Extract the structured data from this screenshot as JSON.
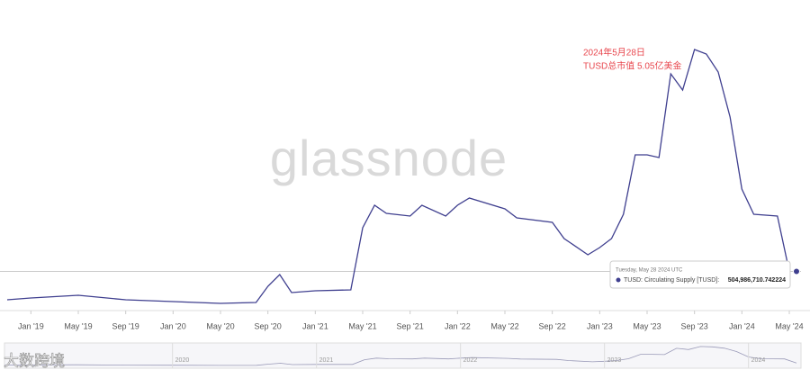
{
  "chart_data": {
    "type": "line",
    "watermark": "glassnode",
    "annotation": [
      "2024年5月28日",
      "TUSD总市值 5.05亿美金"
    ],
    "x": [
      "2018-11",
      "2019-01",
      "2019-05",
      "2019-09",
      "2020-01",
      "2020-05",
      "2020-08",
      "2020-09",
      "2020-10",
      "2020-11",
      "2021-01",
      "2021-04",
      "2021-05",
      "2021-06",
      "2021-07",
      "2021-09",
      "2021-10",
      "2021-12",
      "2022-01",
      "2022-02",
      "2022-05",
      "2022-06",
      "2022-09",
      "2022-10",
      "2022-12",
      "2023-01",
      "2023-02",
      "2023-03",
      "2023-04",
      "2023-05",
      "2023-06",
      "2023-07",
      "2023-08",
      "2023-09",
      "2023-10",
      "2023-11",
      "2023-12",
      "2024-01",
      "2024-02",
      "2024-04",
      "2024-05"
    ],
    "series": [
      {
        "name": "TUSD: Circulating Supply [TUSD]:",
        "color": "#3f3f8f",
        "values": [
          190000000,
          210000000,
          240000000,
          190000000,
          170000000,
          150000000,
          160000000,
          340000000,
          470000000,
          270000000,
          290000000,
          300000000,
          990000000,
          1240000000,
          1150000000,
          1120000000,
          1240000000,
          1120000000,
          1240000000,
          1320000000,
          1200000000,
          1100000000,
          1050000000,
          870000000,
          690000000,
          770000000,
          870000000,
          1140000000,
          1800000000,
          1800000000,
          1770000000,
          2700000000,
          2520000000,
          2970000000,
          2920000000,
          2720000000,
          2220000000,
          1420000000,
          1140000000,
          1120000000,
          504986710.742224
        ]
      }
    ],
    "xlim": [
      "2018-11",
      "2024-05"
    ],
    "ylim": [
      0,
      3500000000
    ],
    "xticks": [
      {
        "value": "2019-01",
        "label": "Jan '19"
      },
      {
        "value": "2019-05",
        "label": "May '19"
      },
      {
        "value": "2019-09",
        "label": "Sep '19"
      },
      {
        "value": "2020-01",
        "label": "Jan '20"
      },
      {
        "value": "2020-05",
        "label": "May '20"
      },
      {
        "value": "2020-09",
        "label": "Sep '20"
      },
      {
        "value": "2021-01",
        "label": "Jan '21"
      },
      {
        "value": "2021-05",
        "label": "May '21"
      },
      {
        "value": "2021-09",
        "label": "Sep '21"
      },
      {
        "value": "2022-01",
        "label": "Jan '22"
      },
      {
        "value": "2022-05",
        "label": "May '22"
      },
      {
        "value": "2022-09",
        "label": "Sep '22"
      },
      {
        "value": "2023-01",
        "label": "Jan '23"
      },
      {
        "value": "2023-05",
        "label": "May '23"
      },
      {
        "value": "2023-09",
        "label": "Sep '23"
      },
      {
        "value": "2024-01",
        "label": "Jan '24"
      },
      {
        "value": "2024-05",
        "label": "May '24"
      }
    ],
    "tooltip": {
      "date": "Tuesday, May 28 2024 UTC",
      "value_label": "504,986,710.742224"
    },
    "navigator_labels": [
      {
        "value": "2020-01",
        "label": "2020"
      },
      {
        "value": "2021-01",
        "label": "2021"
      },
      {
        "value": "2022-01",
        "label": "2022"
      },
      {
        "value": "2023-01",
        "label": "2023"
      },
      {
        "value": "2024-01",
        "label": "2024"
      }
    ],
    "logo": "大数跨境"
  }
}
